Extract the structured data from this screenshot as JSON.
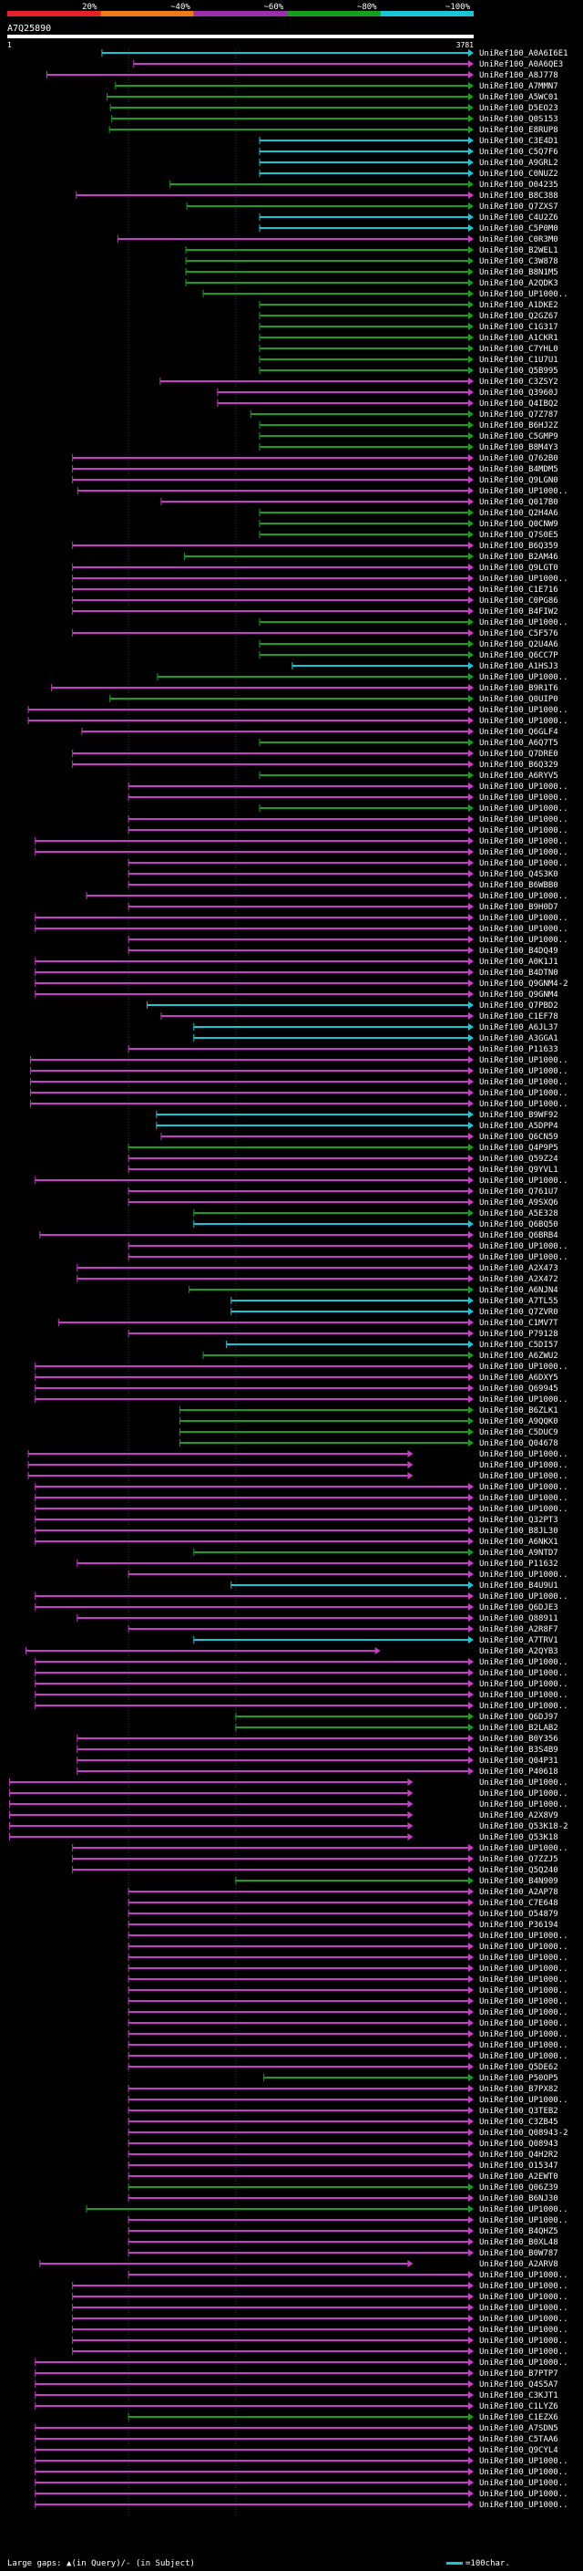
{
  "chart_data": {
    "type": "alignment-overview",
    "title": "A7Q25890",
    "query_length": 3781,
    "axis": {
      "start_label": "1",
      "end_label": "3781"
    },
    "identity_scale": [
      {
        "label": "20%",
        "color": "#e8202a"
      },
      {
        "label": "~40%",
        "color": "#f07a18"
      },
      {
        "label": "~60%",
        "color": "#9b2fae"
      },
      {
        "label": "~80%",
        "color": "#19a01a"
      },
      {
        "label": "~100%",
        "color": "#19c6d6"
      }
    ],
    "class_colors": {
      "c": "#19c6d6",
      "g": "#19a01a",
      "m": "#c93cc9"
    },
    "hits": [
      [
        "UniRef100_A0A6I6E1",
        "c",
        0.203,
        1
      ],
      [
        "UniRef100_A0A6QE3",
        "m",
        0.271,
        1
      ],
      [
        "UniRef100_A8J778",
        "m",
        0.085,
        1
      ],
      [
        "UniRef100_A7MMN7",
        "g",
        0.232,
        1
      ],
      [
        "UniRef100_A5WC01",
        "g",
        0.214,
        1
      ],
      [
        "UniRef100_D5EO23",
        "g",
        0.221,
        1
      ],
      [
        "UniRef100_Q0S153",
        "g",
        0.224,
        1
      ],
      [
        "UniRef100_E8RUP8",
        "g",
        0.219,
        1
      ],
      [
        "UniRef100_C3E4D1",
        "c",
        0.541,
        1
      ],
      [
        "UniRef100_C5Q7F6",
        "c",
        0.541,
        1
      ],
      [
        "UniRef100_A9GRL2",
        "c",
        0.541,
        1
      ],
      [
        "UniRef100_C0NUZ2",
        "c",
        0.541,
        1
      ],
      [
        "UniRef100_O04235",
        "g",
        0.349,
        1
      ],
      [
        "UniRef100_B8C388",
        "m",
        0.148,
        1
      ],
      [
        "UniRef100_Q7ZXS7",
        "g",
        0.385,
        1
      ],
      [
        "UniRef100_C4U2Z6",
        "c",
        0.541,
        1
      ],
      [
        "UniRef100_C5P0M0",
        "c",
        0.541,
        1
      ],
      [
        "UniRef100_C0R3M0",
        "m",
        0.237,
        1
      ],
      [
        "UniRef100_B2WEL1",
        "g",
        0.383,
        1
      ],
      [
        "UniRef100_C3W878",
        "g",
        0.383,
        1
      ],
      [
        "UniRef100_B8N1M5",
        "g",
        0.383,
        1
      ],
      [
        "UniRef100_A2QDK3",
        "g",
        0.383,
        1
      ],
      [
        "UniRef100_UP1000..",
        "g",
        0.42,
        1
      ],
      [
        "UniRef100_A1DKE2",
        "g",
        0.541,
        1
      ],
      [
        "UniRef100_Q2GZ67",
        "g",
        0.541,
        1
      ],
      [
        "UniRef100_C1G317",
        "g",
        0.541,
        1
      ],
      [
        "UniRef100_A1CKR1",
        "g",
        0.541,
        1
      ],
      [
        "UniRef100_C7YHL0",
        "g",
        0.541,
        1
      ],
      [
        "UniRef100_C1U7U1",
        "g",
        0.541,
        1
      ],
      [
        "UniRef100_Q5B995",
        "g",
        0.541,
        1
      ],
      [
        "UniRef100_C3ZSY2",
        "m",
        0.328,
        1
      ],
      [
        "UniRef100_Q3960J",
        "m",
        0.451,
        1
      ],
      [
        "UniRef100_Q4IBQ2",
        "m",
        0.451,
        1
      ],
      [
        "UniRef100_Q7Z787",
        "g",
        0.522,
        1
      ],
      [
        "UniRef100_B6HJ2Z",
        "g",
        0.541,
        1
      ],
      [
        "UniRef100_C5GMP9",
        "g",
        0.541,
        1
      ],
      [
        "UniRef100_B8M4Y3",
        "g",
        0.541,
        1
      ],
      [
        "UniRef100_Q762B0",
        "m",
        0.14,
        1
      ],
      [
        "UniRef100_B4MDM5",
        "m",
        0.14,
        1
      ],
      [
        "UniRef100_Q9LGN0",
        "m",
        0.14,
        1
      ],
      [
        "UniRef100_UP1000..",
        "m",
        0.151,
        1
      ],
      [
        "UniRef100_Q017B0",
        "m",
        0.33,
        1
      ],
      [
        "UniRef100_Q2H4A6",
        "g",
        0.541,
        1
      ],
      [
        "UniRef100_Q0CNW9",
        "g",
        0.541,
        1
      ],
      [
        "UniRef100_Q7S0E5",
        "g",
        0.541,
        1
      ],
      [
        "UniRef100_B6Q359",
        "m",
        0.14,
        1
      ],
      [
        "UniRef100_B2AM46",
        "g",
        0.38,
        1
      ],
      [
        "UniRef100_Q9LGT0",
        "m",
        0.14,
        1
      ],
      [
        "UniRef100_UP1000..",
        "m",
        0.14,
        1
      ],
      [
        "UniRef100_C1E716",
        "m",
        0.14,
        1
      ],
      [
        "UniRef100_C0PG86",
        "m",
        0.14,
        1
      ],
      [
        "UniRef100_B4FIW2",
        "m",
        0.14,
        1
      ],
      [
        "UniRef100_UP1000..",
        "g",
        0.541,
        1
      ],
      [
        "UniRef100_C5F576",
        "m",
        0.14,
        1
      ],
      [
        "UniRef100_Q2U4A6",
        "g",
        0.541,
        1
      ],
      [
        "UniRef100_Q6CC7P",
        "g",
        0.541,
        1
      ],
      [
        "UniRef100_A1HSJ3",
        "c",
        0.611,
        1
      ],
      [
        "UniRef100_UP1000..",
        "g",
        0.322,
        1
      ],
      [
        "UniRef100_B9R1T6",
        "m",
        0.095,
        1
      ],
      [
        "UniRef100_Q0UIP0",
        "g",
        0.22,
        1
      ],
      [
        "UniRef100_UP1000..",
        "m",
        0.045,
        1
      ],
      [
        "UniRef100_UP1000..",
        "m",
        0.045,
        1
      ],
      [
        "UniRef100_Q6GLF4",
        "m",
        0.16,
        1
      ],
      [
        "UniRef100_A6Q7T5",
        "g",
        0.541,
        1
      ],
      [
        "UniRef100_Q7DRE0",
        "m",
        0.14,
        1
      ],
      [
        "UniRef100_B6Q329",
        "m",
        0.14,
        1
      ],
      [
        "UniRef100_A6RYV5",
        "g",
        0.541,
        1
      ],
      [
        "UniRef100_UP1000..",
        "m",
        0.26,
        1
      ],
      [
        "UniRef100_UP1000..",
        "m",
        0.26,
        1
      ],
      [
        "UniRef100_UP1000..",
        "g",
        0.541,
        1
      ],
      [
        "UniRef100_UP1000..",
        "m",
        0.26,
        1
      ],
      [
        "UniRef100_UP1000..",
        "m",
        0.26,
        1
      ],
      [
        "UniRef100_UP1000..",
        "m",
        0.06,
        1
      ],
      [
        "UniRef100_UP1000..",
        "m",
        0.06,
        1
      ],
      [
        "UniRef100_UP1000..",
        "m",
        0.26,
        1
      ],
      [
        "UniRef100_Q4S3K0",
        "m",
        0.26,
        1
      ],
      [
        "UniRef100_B6WBB0",
        "m",
        0.26,
        1
      ],
      [
        "UniRef100_UP1000..",
        "m",
        0.17,
        1
      ],
      [
        "UniRef100_B9H0D7",
        "m",
        0.26,
        1
      ],
      [
        "UniRef100_UP1000..",
        "m",
        0.06,
        1
      ],
      [
        "UniRef100_UP1000..",
        "m",
        0.06,
        1
      ],
      [
        "UniRef100_UP1000..",
        "m",
        0.26,
        1
      ],
      [
        "UniRef100_B4DQ49",
        "m",
        0.26,
        1
      ],
      [
        "UniRef100_A0K1J1",
        "m",
        0.06,
        1
      ],
      [
        "UniRef100_B4DTN0",
        "m",
        0.06,
        1
      ],
      [
        "UniRef100_Q9GNM4-2",
        "m",
        0.06,
        1
      ],
      [
        "UniRef100_Q9GNM4",
        "m",
        0.06,
        1
      ],
      [
        "UniRef100_Q7PBD2",
        "c",
        0.3,
        1
      ],
      [
        "UniRef100_C1EF78",
        "m",
        0.33,
        1
      ],
      [
        "UniRef100_A6JL37",
        "c",
        0.4,
        1
      ],
      [
        "UniRef100_A3GGA1",
        "c",
        0.4,
        1
      ],
      [
        "UniRef100_P11633",
        "m",
        0.26,
        1
      ],
      [
        "UniRef100_UP1000..",
        "m",
        0.05,
        1
      ],
      [
        "UniRef100_UP1000..",
        "m",
        0.05,
        1
      ],
      [
        "UniRef100_UP1000..",
        "m",
        0.05,
        1
      ],
      [
        "UniRef100_UP1000..",
        "m",
        0.05,
        1
      ],
      [
        "UniRef100_UP1000..",
        "m",
        0.05,
        1
      ],
      [
        "UniRef100_B9WF92",
        "c",
        0.32,
        1
      ],
      [
        "UniRef100_A5DPP4",
        "c",
        0.32,
        1
      ],
      [
        "UniRef100_Q6CN59",
        "m",
        0.33,
        1
      ],
      [
        "UniRef100_Q4P9P5",
        "g",
        0.26,
        1
      ],
      [
        "UniRef100_Q59Z24",
        "m",
        0.26,
        1
      ],
      [
        "UniRef100_Q9YVL1",
        "m",
        0.26,
        1
      ],
      [
        "UniRef100_UP1000..",
        "m",
        0.06,
        1
      ],
      [
        "UniRef100_Q761U7",
        "m",
        0.26,
        1
      ],
      [
        "UniRef100_A9SXQ6",
        "m",
        0.26,
        1
      ],
      [
        "UniRef100_A5E328",
        "g",
        0.4,
        1
      ],
      [
        "UniRef100_Q6BQ50",
        "c",
        0.4,
        1
      ],
      [
        "UniRef100_Q6BRB4",
        "m",
        0.07,
        1
      ],
      [
        "UniRef100_UP1000..",
        "m",
        0.26,
        1
      ],
      [
        "UniRef100_UP1000..",
        "m",
        0.26,
        1
      ],
      [
        "UniRef100_A2X473",
        "m",
        0.15,
        1
      ],
      [
        "UniRef100_A2X472",
        "m",
        0.15,
        1
      ],
      [
        "UniRef100_A6NJN4",
        "g",
        0.39,
        1
      ],
      [
        "UniRef100_A7TL55",
        "c",
        0.48,
        1
      ],
      [
        "UniRef100_Q7ZVR0",
        "c",
        0.48,
        1
      ],
      [
        "UniRef100_C1MV7T",
        "m",
        0.11,
        1
      ],
      [
        "UniRef100_P79128",
        "m",
        0.26,
        1
      ],
      [
        "UniRef100_C5DI57",
        "c",
        0.47,
        1
      ],
      [
        "UniRef100_A6ZWU2",
        "g",
        0.42,
        1
      ],
      [
        "UniRef100_UP1000..",
        "m",
        0.06,
        1
      ],
      [
        "UniRef100_A6DXY5",
        "m",
        0.06,
        1
      ],
      [
        "UniRef100_Q69945",
        "m",
        0.06,
        1
      ],
      [
        "UniRef100_UP1000..",
        "m",
        0.06,
        1
      ],
      [
        "UniRef100_B6ZLK1",
        "g",
        0.37,
        1
      ],
      [
        "UniRef100_A9QQK0",
        "g",
        0.37,
        1
      ],
      [
        "UniRef100_C5DUC9",
        "g",
        0.37,
        1
      ],
      [
        "UniRef100_Q04678",
        "g",
        0.37,
        1
      ],
      [
        "UniRef100_UP1000..",
        "m",
        0.045,
        0.87
      ],
      [
        "UniRef100_UP1000..",
        "m",
        0.045,
        0.87
      ],
      [
        "UniRef100_UP1000..",
        "m",
        0.045,
        0.87
      ],
      [
        "UniRef100_UP1000..",
        "m",
        0.06,
        1
      ],
      [
        "UniRef100_UP1000..",
        "m",
        0.06,
        1
      ],
      [
        "UniRef100_UP1000..",
        "m",
        0.06,
        1
      ],
      [
        "UniRef100_Q32PT3",
        "m",
        0.06,
        1
      ],
      [
        "UniRef100_B8JL30",
        "m",
        0.06,
        1
      ],
      [
        "UniRef100_A6NKX1",
        "m",
        0.06,
        1
      ],
      [
        "UniRef100_A9NTD7",
        "g",
        0.4,
        1
      ],
      [
        "UniRef100_P11632",
        "m",
        0.15,
        1
      ],
      [
        "UniRef100_UP1000..",
        "m",
        0.26,
        1
      ],
      [
        "UniRef100_B4U9U1",
        "c",
        0.48,
        1
      ],
      [
        "UniRef100_UP1000..",
        "m",
        0.06,
        1
      ],
      [
        "UniRef100_Q6DJE3",
        "m",
        0.06,
        1
      ],
      [
        "UniRef100_Q88911",
        "m",
        0.15,
        1
      ],
      [
        "UniRef100_A2R8F7",
        "m",
        0.26,
        1
      ],
      [
        "UniRef100_A7TRV1",
        "c",
        0.4,
        1
      ],
      [
        "UniRef100_A2QYB3",
        "m",
        0.04,
        0.8
      ],
      [
        "UniRef100_UP1000..",
        "m",
        0.06,
        1
      ],
      [
        "UniRef100_UP1000..",
        "m",
        0.06,
        1
      ],
      [
        "UniRef100_UP1000..",
        "m",
        0.06,
        1
      ],
      [
        "UniRef100_UP1000..",
        "m",
        0.06,
        1
      ],
      [
        "UniRef100_UP1000..",
        "m",
        0.06,
        1
      ],
      [
        "UniRef100_Q6DJ97",
        "g",
        0.49,
        1
      ],
      [
        "UniRef100_B2LAB2",
        "g",
        0.49,
        1
      ],
      [
        "UniRef100_B0Y356",
        "m",
        0.15,
        1
      ],
      [
        "UniRef100_B3S4B9",
        "m",
        0.15,
        1
      ],
      [
        "UniRef100_Q04P31",
        "m",
        0.15,
        1
      ],
      [
        "UniRef100_P40618",
        "m",
        0.15,
        1
      ],
      [
        "UniRef100_UP1000..",
        "m",
        0.005,
        0.87
      ],
      [
        "UniRef100_UP1000..",
        "m",
        0.005,
        0.87
      ],
      [
        "UniRef100_UP1000..",
        "m",
        0.005,
        0.87
      ],
      [
        "UniRef100_A2X8V9",
        "m",
        0.005,
        0.87
      ],
      [
        "UniRef100_Q53K18-2",
        "m",
        0.005,
        0.87
      ],
      [
        "UniRef100_Q53K18",
        "m",
        0.005,
        0.87
      ],
      [
        "UniRef100_UP1000..",
        "m",
        0.14,
        1
      ],
      [
        "UniRef100_Q7ZZJ5",
        "m",
        0.14,
        1
      ],
      [
        "UniRef100_Q5Q240",
        "m",
        0.14,
        1
      ],
      [
        "UniRef100_B4N909",
        "g",
        0.49,
        1
      ],
      [
        "UniRef100_A2AP78",
        "m",
        0.26,
        1
      ],
      [
        "UniRef100_C7E648",
        "m",
        0.26,
        1
      ],
      [
        "UniRef100_O54879",
        "m",
        0.26,
        1
      ],
      [
        "UniRef100_P36194",
        "m",
        0.26,
        1
      ],
      [
        "UniRef100_UP1000..",
        "m",
        0.26,
        1
      ],
      [
        "UniRef100_UP1000..",
        "m",
        0.26,
        1
      ],
      [
        "UniRef100_UP1000..",
        "m",
        0.26,
        1
      ],
      [
        "UniRef100_UP1000..",
        "m",
        0.26,
        1
      ],
      [
        "UniRef100_UP1000..",
        "m",
        0.26,
        1
      ],
      [
        "UniRef100_UP1000..",
        "m",
        0.26,
        1
      ],
      [
        "UniRef100_UP1000..",
        "m",
        0.26,
        1
      ],
      [
        "UniRef100_UP1000..",
        "m",
        0.26,
        1
      ],
      [
        "UniRef100_UP1000..",
        "m",
        0.26,
        1
      ],
      [
        "UniRef100_UP1000..",
        "m",
        0.26,
        1
      ],
      [
        "UniRef100_UP1000..",
        "m",
        0.26,
        1
      ],
      [
        "UniRef100_UP1000..",
        "m",
        0.26,
        1
      ],
      [
        "UniRef100_Q5DE62",
        "m",
        0.26,
        1
      ],
      [
        "UniRef100_P50OP5",
        "g",
        0.55,
        1
      ],
      [
        "UniRef100_B7PX82",
        "m",
        0.26,
        1
      ],
      [
        "UniRef100_UP1000..",
        "m",
        0.26,
        1
      ],
      [
        "UniRef100_Q3TEB2",
        "m",
        0.26,
        1
      ],
      [
        "UniRef100_C3ZB45",
        "m",
        0.26,
        1
      ],
      [
        "UniRef100_Q08943-2",
        "m",
        0.26,
        1
      ],
      [
        "UniRef100_Q08943",
        "m",
        0.26,
        1
      ],
      [
        "UniRef100_Q4H2R2",
        "m",
        0.26,
        1
      ],
      [
        "UniRef100_O15347",
        "m",
        0.26,
        1
      ],
      [
        "UniRef100_A2EWT0",
        "m",
        0.26,
        1
      ],
      [
        "UniRef100_Q06Z39",
        "g",
        0.26,
        1
      ],
      [
        "UniRef100_B6NJ30",
        "m",
        0.26,
        1
      ],
      [
        "UniRef100_UP1000..",
        "g",
        0.17,
        1
      ],
      [
        "UniRef100_UP1000..",
        "m",
        0.26,
        1
      ],
      [
        "UniRef100_B4QHZ5",
        "m",
        0.26,
        1
      ],
      [
        "UniRef100_B0XL48",
        "m",
        0.26,
        1
      ],
      [
        "UniRef100_B0W787",
        "m",
        0.26,
        1
      ],
      [
        "UniRef100_A2ARV8",
        "m",
        0.07,
        0.87
      ],
      [
        "UniRef100_UP1000..",
        "m",
        0.26,
        1
      ],
      [
        "UniRef100_UP1000..",
        "m",
        0.14,
        1
      ],
      [
        "UniRef100_UP1000..",
        "m",
        0.14,
        1
      ],
      [
        "UniRef100_UP1000..",
        "m",
        0.14,
        1
      ],
      [
        "UniRef100_UP1000..",
        "m",
        0.14,
        1
      ],
      [
        "UniRef100_UP1000..",
        "m",
        0.14,
        1
      ],
      [
        "UniRef100_UP1000..",
        "m",
        0.14,
        1
      ],
      [
        "UniRef100_UP1000..",
        "m",
        0.14,
        1
      ],
      [
        "UniRef100_UP1000..",
        "m",
        0.06,
        1
      ],
      [
        "UniRef100_B7PTP7",
        "m",
        0.06,
        1
      ],
      [
        "UniRef100_Q4S5A7",
        "m",
        0.06,
        1
      ],
      [
        "UniRef100_C3KJT1",
        "m",
        0.06,
        1
      ],
      [
        "UniRef100_C1LYZ6",
        "m",
        0.06,
        1
      ],
      [
        "UniRef100_C1EZX6",
        "g",
        0.26,
        1
      ],
      [
        "UniRef100_A7SDN5",
        "m",
        0.06,
        1
      ],
      [
        "UniRef100_C5TAA6",
        "m",
        0.06,
        1
      ],
      [
        "UniRef100_Q9CYL4",
        "m",
        0.06,
        1
      ],
      [
        "UniRef100_UP1000..",
        "m",
        0.06,
        1
      ],
      [
        "UniRef100_UP1000..",
        "m",
        0.06,
        1
      ],
      [
        "UniRef100_UP1000..",
        "m",
        0.06,
        1
      ],
      [
        "UniRef100_UP1000..",
        "m",
        0.06,
        1
      ],
      [
        "UniRef100_UP1000..",
        "m",
        0.06,
        1
      ]
    ],
    "footer_note": "Large gaps: ▲(in Query)/- (in Subject)",
    "scale_note": "=100char."
  }
}
